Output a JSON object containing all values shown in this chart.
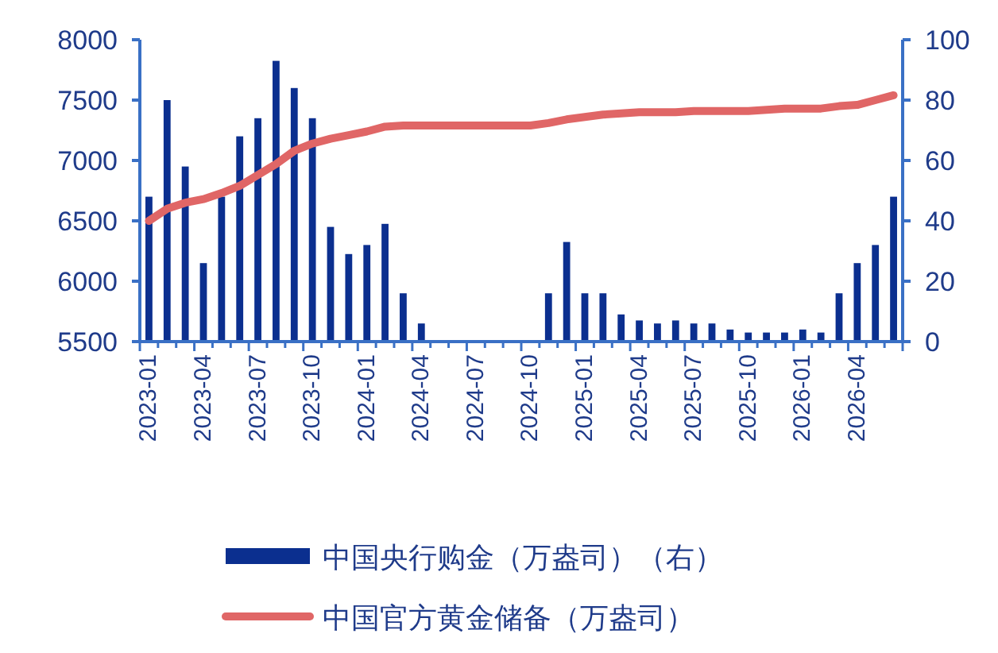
{
  "chart_data": {
    "type": "bar",
    "categories": [
      "2023-01",
      null,
      null,
      "2023-04",
      null,
      null,
      "2023-07",
      null,
      null,
      "2023-10",
      null,
      null,
      "2024-01",
      null,
      null,
      "2024-04",
      null,
      null,
      "2024-07",
      null,
      null,
      "2024-10",
      null,
      null,
      "2025-01",
      null,
      null,
      "2025-04",
      null,
      null,
      "2025-07",
      null,
      null,
      "2025-10",
      null,
      null,
      "2026-01",
      null,
      null,
      "2026-04",
      null,
      null
    ],
    "series": [
      {
        "name": "中国央行购金（万盎司）（右）",
        "axis": "y2",
        "color": "#0b2f8f",
        "values": [
          48,
          80,
          58,
          26,
          48,
          68,
          74,
          93,
          84,
          74,
          38,
          29,
          32,
          39,
          16,
          6,
          0,
          0,
          0,
          0,
          0,
          0,
          16,
          33,
          16,
          16,
          9,
          7,
          6,
          7,
          6,
          6,
          4,
          3,
          3,
          3,
          4,
          3,
          16,
          26,
          32,
          48
        ]
      },
      {
        "name": "中国官方黄金储备（万盎司）",
        "type": "line",
        "color": "#e06666",
        "values": [
          6500,
          6600,
          6650,
          6680,
          6730,
          6790,
          6880,
          6970,
          7080,
          7140,
          7180,
          7210,
          7240,
          7280,
          7290,
          7290,
          7290,
          7290,
          7290,
          7290,
          7290,
          7290,
          7310,
          7340,
          7360,
          7380,
          7390,
          7400,
          7400,
          7400,
          7410,
          7410,
          7410,
          7410,
          7420,
          7430,
          7430,
          7430,
          7450,
          7460,
          7500,
          7540
        ]
      }
    ],
    "ylim": [
      5500,
      8000
    ],
    "yticks": [
      5500,
      6000,
      6500,
      7000,
      7500,
      8000
    ],
    "y2lim": [
      0,
      100
    ],
    "y2ticks": [
      0,
      20,
      40,
      60,
      80,
      100
    ],
    "legend": "bottom",
    "grid": false
  }
}
